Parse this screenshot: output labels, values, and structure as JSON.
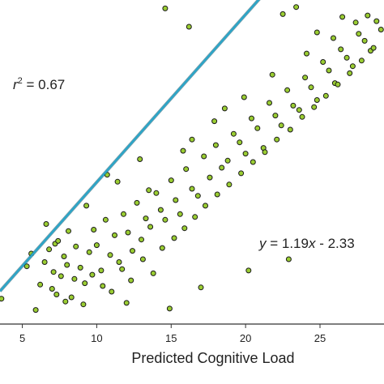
{
  "chart_data": {
    "type": "scatter",
    "title": "",
    "xlabel": "Predicted Cognitive Load",
    "ylabel": "",
    "xlim": [
      3.5,
      29.3
    ],
    "ylim": [
      -0.5,
      22.5
    ],
    "xticks": [
      5,
      10,
      15,
      20,
      25
    ],
    "grid": false,
    "colors": {
      "point": "#9acd32",
      "point_edge": "#1a1a1a",
      "fit_line": "#2aa6c9"
    },
    "annotations": {
      "r2_prefix": "r",
      "r2_sup": "2",
      "r2_value": " = 0.67",
      "eq_y": "y",
      "eq_mid": " = 1.19",
      "eq_x": "x",
      "eq_tail": " - 2.33"
    },
    "fit": {
      "slope": 1.19,
      "intercept": -2.33
    },
    "series": [
      {
        "x": [
          3.6,
          5.9,
          5.6,
          6.5,
          6.8,
          7.1,
          7.3,
          7.2,
          7.6,
          7.8,
          8.0,
          8.3,
          8.6,
          8.9,
          9.2,
          9.5,
          9.8,
          10.0,
          10.3,
          10.6,
          10.9,
          11.2,
          11.5,
          11.8,
          12.1,
          12.4,
          12.7,
          13.0,
          13.3,
          13.6,
          14.0,
          14.3,
          14.6,
          15.0,
          15.3,
          15.6,
          16.0,
          16.4,
          16.8,
          17.2,
          17.6,
          18.0,
          18.4,
          18.8,
          19.2,
          19.6,
          20.0,
          20.4,
          20.8,
          21.2,
          21.6,
          22.0,
          22.4,
          22.8,
          23.2,
          23.6,
          24.0,
          24.4,
          24.8,
          25.2,
          25.6,
          26.0,
          26.4,
          26.8,
          27.2,
          27.6,
          28.0,
          28.4,
          28.8,
          29.1,
          6.2,
          7.0,
          7.9,
          8.5,
          9.1,
          9.7,
          10.4,
          11.0,
          11.7,
          12.3,
          13.1,
          13.8,
          14.4,
          15.2,
          15.9,
          16.6,
          17.3,
          18.1,
          18.9,
          19.7,
          20.5,
          21.3,
          22.1,
          23.0,
          23.8,
          24.6,
          25.4,
          26.2,
          27.0,
          27.8,
          28.6,
          14.6,
          16.2,
          22.5,
          23.4,
          24.8,
          26.5,
          11.4,
          12.9,
          16.4,
          18.6,
          10.7,
          9.3,
          8.1,
          7.4,
          6.6,
          5.3,
          13.5,
          15.8,
          17.9,
          19.9,
          21.8,
          24.1,
          25.9,
          27.4,
          28.2,
          12.0,
          14.9,
          17.0,
          20.2,
          22.9
        ],
        "y": [
          1.3,
          0.5,
          4.5,
          3.9,
          4.8,
          3.2,
          1.6,
          5.2,
          2.9,
          4.3,
          3.7,
          1.4,
          5.0,
          3.5,
          2.4,
          4.6,
          6.2,
          5.1,
          3.3,
          6.9,
          4.4,
          5.8,
          3.9,
          7.3,
          6.0,
          4.7,
          8.1,
          5.5,
          7.0,
          6.4,
          8.8,
          7.6,
          6.9,
          9.7,
          8.3,
          7.3,
          10.5,
          9.1,
          8.6,
          11.4,
          9.9,
          12.2,
          10.6,
          11.1,
          13.0,
          12.4,
          11.6,
          14.1,
          13.4,
          12.0,
          15.2,
          14.3,
          13.6,
          16.1,
          15.0,
          14.7,
          17.0,
          16.3,
          15.4,
          18.1,
          17.5,
          16.6,
          19.0,
          18.4,
          17.8,
          20.1,
          19.6,
          18.9,
          21.0,
          20.4,
          2.3,
          2.0,
          1.1,
          2.7,
          0.9,
          3.0,
          2.2,
          1.8,
          3.4,
          2.6,
          4.1,
          3.1,
          4.9,
          5.6,
          6.3,
          7.1,
          7.9,
          8.7,
          9.4,
          10.2,
          11.0,
          11.7,
          12.6,
          13.3,
          14.2,
          14.9,
          15.7,
          16.5,
          17.3,
          18.2,
          19.1,
          21.9,
          20.6,
          21.5,
          22.0,
          20.2,
          21.3,
          9.6,
          11.2,
          12.6,
          14.8,
          10.1,
          7.9,
          6.1,
          5.4,
          6.6,
          3.6,
          9.0,
          11.8,
          13.9,
          15.6,
          17.2,
          18.7,
          19.8,
          20.9,
          21.4,
          1.0,
          0.6,
          2.1,
          3.3,
          4.1
        ]
      }
    ]
  }
}
